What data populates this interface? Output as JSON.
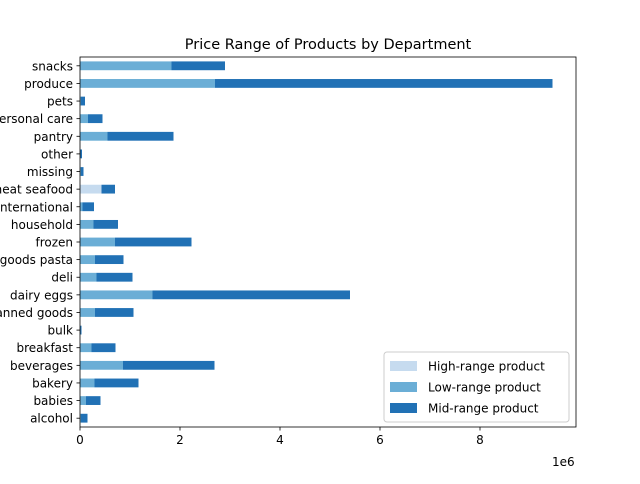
{
  "chart_data": {
    "type": "bar",
    "orientation": "horizontal",
    "stacked": true,
    "title": "Price Range of Products by Department",
    "xlabel": "",
    "ylabel": "",
    "x_offset_label": "1e6",
    "xlim": [
      0,
      9.92
    ],
    "xticks": [
      0,
      2,
      4,
      6,
      8
    ],
    "grid": false,
    "legend_position": "lower-right",
    "categories": [
      "alcohol",
      "babies",
      "bakery",
      "beverages",
      "breakfast",
      "bulk",
      "canned goods",
      "dairy eggs",
      "deli",
      "dry goods pasta",
      "frozen",
      "household",
      "international",
      "meat seafood",
      "missing",
      "other",
      "pantry",
      "personal care",
      "pets",
      "produce",
      "snacks"
    ],
    "series": [
      {
        "name": "High-range product",
        "color": "#c6dbef",
        "values": [
          0,
          0,
          0,
          0,
          0,
          0,
          0,
          0,
          0,
          0,
          0,
          0,
          0,
          0.43,
          0,
          0,
          0,
          0,
          0,
          0,
          0
        ]
      },
      {
        "name": "Low-range product",
        "color": "#6baed6",
        "values": [
          0.02,
          0.12,
          0.29,
          0.86,
          0.23,
          0.01,
          0.3,
          1.45,
          0.33,
          0.3,
          0.7,
          0.27,
          0.05,
          0,
          0.02,
          0.01,
          0.55,
          0.16,
          0.02,
          2.7,
          1.83
        ]
      },
      {
        "name": "Mid-range product",
        "color": "#2171b5",
        "values": [
          0.13,
          0.29,
          0.88,
          1.83,
          0.48,
          0.02,
          0.77,
          3.95,
          0.72,
          0.57,
          1.53,
          0.49,
          0.23,
          0.27,
          0.05,
          0.03,
          1.32,
          0.29,
          0.08,
          6.75,
          1.07
        ]
      }
    ]
  }
}
